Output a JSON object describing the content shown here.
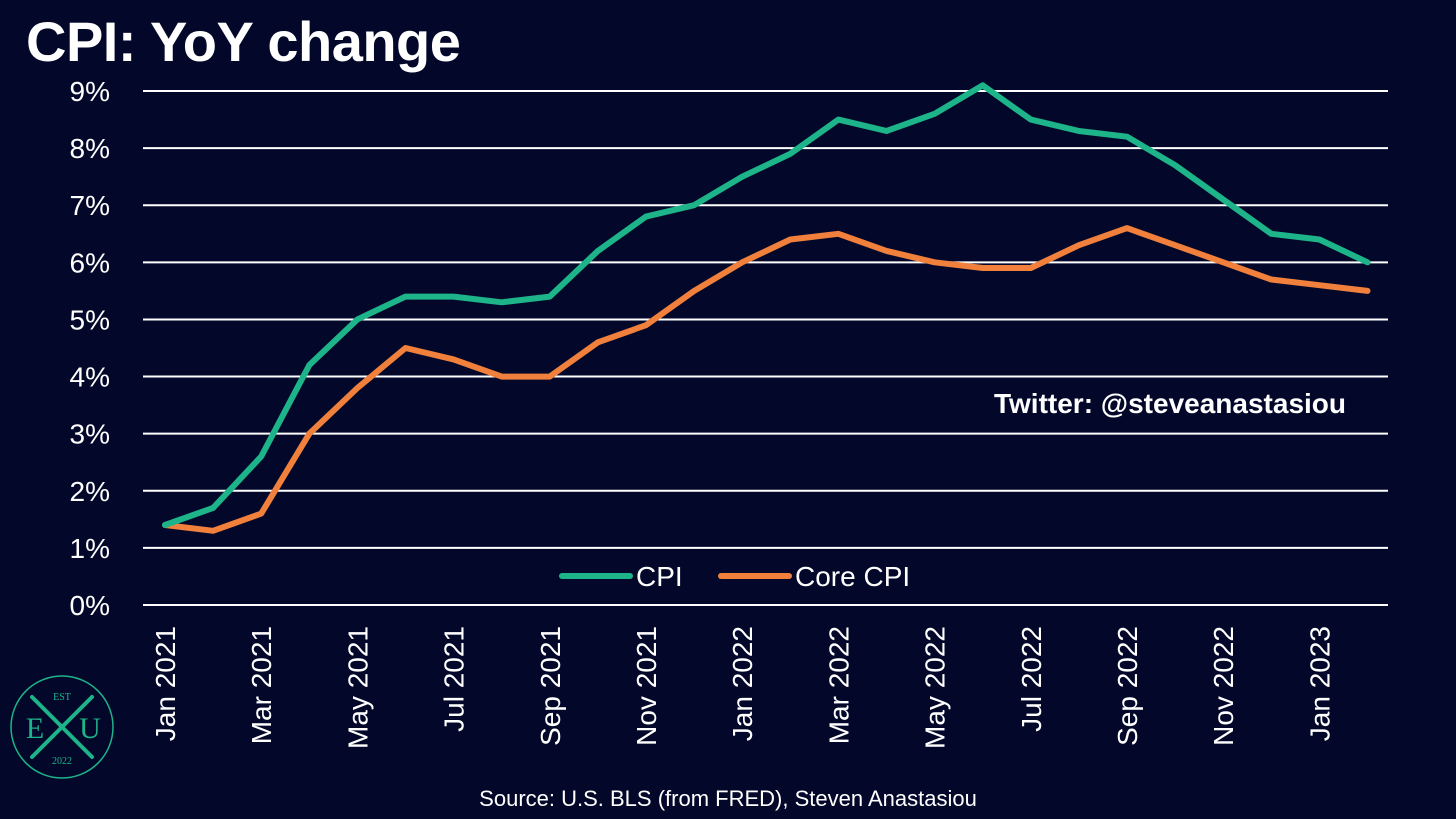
{
  "chart_data": {
    "type": "line",
    "title": "CPI: YoY change",
    "xlabel": "",
    "ylabel": "",
    "ylim": [
      0,
      9
    ],
    "ytick_labels": [
      "0%",
      "1%",
      "2%",
      "3%",
      "4%",
      "5%",
      "6%",
      "7%",
      "8%",
      "9%"
    ],
    "x": [
      "Jan 2021",
      "Feb 2021",
      "Mar 2021",
      "Apr 2021",
      "May 2021",
      "Jun 2021",
      "Jul 2021",
      "Aug 2021",
      "Sep 2021",
      "Oct 2021",
      "Nov 2021",
      "Dec 2021",
      "Jan 2022",
      "Feb 2022",
      "Mar 2022",
      "Apr 2022",
      "May 2022",
      "Jun 2022",
      "Jul 2022",
      "Aug 2022",
      "Sep 2022",
      "Oct 2022",
      "Nov 2022",
      "Dec 2022",
      "Jan 2023",
      "Feb 2023"
    ],
    "xtick_labels": [
      "Jan 2021",
      "Mar 2021",
      "May 2021",
      "Jul 2021",
      "Sep 2021",
      "Nov 2021",
      "Jan 2022",
      "Mar 2022",
      "May 2022",
      "Jul 2022",
      "Sep 2022",
      "Nov 2022",
      "Jan 2023"
    ],
    "series": [
      {
        "name": "CPI",
        "color": "#1db48a",
        "values": [
          1.4,
          1.7,
          2.6,
          4.2,
          5.0,
          5.4,
          5.4,
          5.3,
          5.4,
          6.2,
          6.8,
          7.0,
          7.5,
          7.9,
          8.5,
          8.3,
          8.6,
          9.1,
          8.5,
          8.3,
          8.2,
          7.7,
          7.1,
          6.5,
          6.4,
          6.0
        ]
      },
      {
        "name": "Core CPI",
        "color": "#f0803c",
        "values": [
          1.4,
          1.3,
          1.6,
          3.0,
          3.8,
          4.5,
          4.3,
          4.0,
          4.0,
          4.6,
          4.9,
          5.5,
          6.0,
          6.4,
          6.5,
          6.2,
          6.0,
          5.9,
          5.9,
          6.3,
          6.6,
          6.3,
          6.0,
          5.7,
          5.6,
          5.5
        ]
      }
    ],
    "grid": true,
    "legend": "bottom-center"
  },
  "annotations": {
    "twitter": "Twitter: @steveanastasiou",
    "source": "Source: U.S. BLS (from FRED), Steven Anastasiou"
  },
  "logo": {
    "top": "EST",
    "left_letter": "E",
    "right_letter": "U",
    "bottom": "2022",
    "color": "#1db48a"
  },
  "colors": {
    "background": "#03082a",
    "gridline": "#ffffff",
    "text": "#ffffff"
  }
}
